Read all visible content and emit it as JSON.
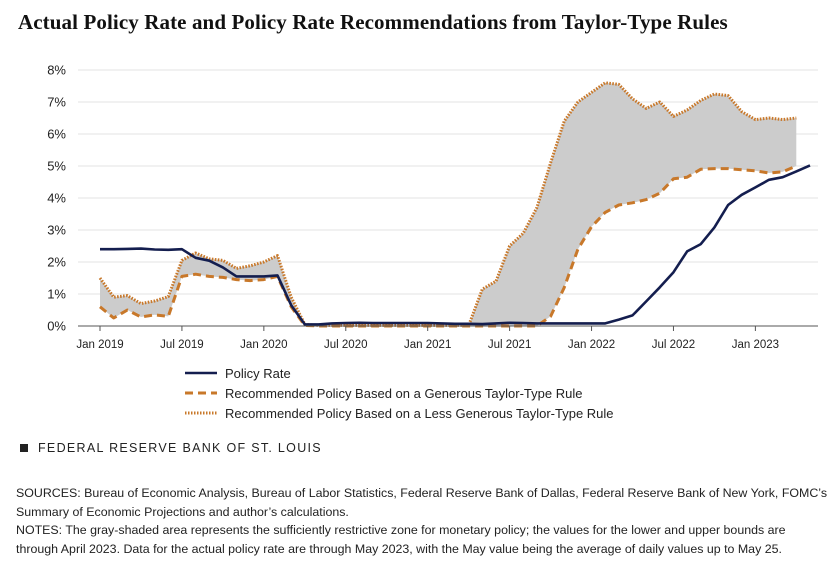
{
  "title": "Actual Policy Rate and Policy Rate Recommendations from Taylor-Type Rules",
  "chart_data": {
    "type": "line",
    "title": "Actual Policy Rate and Policy Rate Recommendations from Taylor-Type Rules",
    "xlabel": "",
    "ylabel": "",
    "ylim": [
      0,
      8
    ],
    "y_tick_labels": [
      "0%",
      "1%",
      "2%",
      "3%",
      "4%",
      "5%",
      "6%",
      "7%",
      "8%"
    ],
    "x_tick_labels": [
      "Jan 2019",
      "Jul 2019",
      "Jan 2020",
      "Jul 2020",
      "Jan 2021",
      "Jul 2021",
      "Jan 2022",
      "Jul 2022",
      "Jan 2023"
    ],
    "x_range": [
      "2019-01",
      "2023-05"
    ],
    "grid": "horizontal",
    "legend_position": "bottom",
    "shaded_area": {
      "between": [
        "Recommended Policy Based on a Generous Taylor-Type Rule",
        "Recommended Policy Based on a Less Generous Taylor-Type Rule"
      ],
      "color": "#cccccc"
    },
    "series": [
      {
        "name": "Policy Rate",
        "color": "#141e4f",
        "style": "solid",
        "x": [
          "2019-01",
          "2019-02",
          "2019-03",
          "2019-04",
          "2019-05",
          "2019-06",
          "2019-07",
          "2019-08",
          "2019-09",
          "2019-10",
          "2019-11",
          "2019-12",
          "2020-01",
          "2020-02",
          "2020-03",
          "2020-04",
          "2020-05",
          "2020-06",
          "2020-07",
          "2020-08",
          "2020-09",
          "2020-10",
          "2020-11",
          "2020-12",
          "2021-01",
          "2021-02",
          "2021-03",
          "2021-04",
          "2021-05",
          "2021-06",
          "2021-07",
          "2021-08",
          "2021-09",
          "2021-10",
          "2021-11",
          "2021-12",
          "2022-01",
          "2022-02",
          "2022-03",
          "2022-04",
          "2022-05",
          "2022-06",
          "2022-07",
          "2022-08",
          "2022-09",
          "2022-10",
          "2022-11",
          "2022-12",
          "2023-01",
          "2023-02",
          "2023-03",
          "2023-04",
          "2023-05"
        ],
        "values": [
          2.4,
          2.4,
          2.41,
          2.42,
          2.39,
          2.38,
          2.4,
          2.13,
          2.04,
          1.83,
          1.55,
          1.55,
          1.55,
          1.58,
          0.65,
          0.05,
          0.05,
          0.08,
          0.09,
          0.1,
          0.09,
          0.09,
          0.09,
          0.09,
          0.09,
          0.08,
          0.07,
          0.07,
          0.06,
          0.08,
          0.1,
          0.09,
          0.08,
          0.08,
          0.08,
          0.08,
          0.08,
          0.08,
          0.2,
          0.33,
          0.77,
          1.21,
          1.68,
          2.33,
          2.56,
          3.08,
          3.78,
          4.1,
          4.33,
          4.57,
          4.65,
          4.83,
          5.02
        ]
      },
      {
        "name": "Recommended Policy Based on a Generous Taylor-Type Rule",
        "color": "#c8782a",
        "style": "dashed",
        "x": [
          "2019-01",
          "2019-02",
          "2019-03",
          "2019-04",
          "2019-05",
          "2019-06",
          "2019-07",
          "2019-08",
          "2019-09",
          "2019-10",
          "2019-11",
          "2019-12",
          "2020-01",
          "2020-02",
          "2020-03",
          "2020-04",
          "2020-05",
          "2020-06",
          "2020-07",
          "2020-08",
          "2020-09",
          "2020-10",
          "2020-11",
          "2020-12",
          "2021-01",
          "2021-02",
          "2021-03",
          "2021-04",
          "2021-05",
          "2021-06",
          "2021-07",
          "2021-08",
          "2021-09",
          "2021-10",
          "2021-11",
          "2021-12",
          "2022-01",
          "2022-02",
          "2022-03",
          "2022-04",
          "2022-05",
          "2022-06",
          "2022-07",
          "2022-08",
          "2022-09",
          "2022-10",
          "2022-11",
          "2022-12",
          "2023-01",
          "2023-02",
          "2023-03",
          "2023-04"
        ],
        "values": [
          0.6,
          0.25,
          0.5,
          0.28,
          0.35,
          0.3,
          1.55,
          1.62,
          1.55,
          1.52,
          1.45,
          1.42,
          1.45,
          1.55,
          0.6,
          0.02,
          0.0,
          0.0,
          0.0,
          0.0,
          0.0,
          0.0,
          0.0,
          0.0,
          0.0,
          0.0,
          0.0,
          0.0,
          0.0,
          0.0,
          0.0,
          0.0,
          0.0,
          0.3,
          1.2,
          2.4,
          3.1,
          3.55,
          3.78,
          3.85,
          3.95,
          4.15,
          4.6,
          4.65,
          4.9,
          4.92,
          4.92,
          4.88,
          4.85,
          4.78,
          4.82,
          5.0
        ]
      },
      {
        "name": "Recommended Policy Based on a Less Generous Taylor-Type Rule",
        "color": "#c8782a",
        "style": "dotted",
        "x": [
          "2019-01",
          "2019-02",
          "2019-03",
          "2019-04",
          "2019-05",
          "2019-06",
          "2019-07",
          "2019-08",
          "2019-09",
          "2019-10",
          "2019-11",
          "2019-12",
          "2020-01",
          "2020-02",
          "2020-03",
          "2020-04",
          "2020-05",
          "2020-06",
          "2020-07",
          "2020-08",
          "2020-09",
          "2020-10",
          "2020-11",
          "2020-12",
          "2021-01",
          "2021-02",
          "2021-03",
          "2021-04",
          "2021-05",
          "2021-06",
          "2021-07",
          "2021-08",
          "2021-09",
          "2021-10",
          "2021-11",
          "2021-12",
          "2022-01",
          "2022-02",
          "2022-03",
          "2022-04",
          "2022-05",
          "2022-06",
          "2022-07",
          "2022-08",
          "2022-09",
          "2022-10",
          "2022-11",
          "2022-12",
          "2023-01",
          "2023-02",
          "2023-03",
          "2023-04"
        ],
        "values": [
          1.5,
          0.9,
          0.95,
          0.7,
          0.78,
          0.92,
          2.05,
          2.28,
          2.1,
          2.05,
          1.8,
          1.88,
          2.0,
          2.2,
          0.9,
          0.05,
          0.02,
          0.02,
          0.02,
          0.02,
          0.02,
          0.02,
          0.02,
          0.02,
          0.02,
          0.02,
          0.02,
          0.02,
          1.15,
          1.4,
          2.5,
          2.9,
          3.7,
          5.1,
          6.4,
          7.0,
          7.3,
          7.6,
          7.55,
          7.1,
          6.8,
          7.0,
          6.55,
          6.75,
          7.05,
          7.25,
          7.2,
          6.7,
          6.45,
          6.5,
          6.45,
          6.5
        ]
      }
    ]
  },
  "legend": {
    "items": [
      "Policy Rate",
      "Recommended Policy Based on a Generous Taylor-Type Rule",
      "Recommended Policy Based on a Less Generous Taylor-Type Rule"
    ]
  },
  "source_brand": "FEDERAL RESERVE BANK OF ST. LOUIS",
  "notes": {
    "sources": "SOURCES: Bureau of Economic Analysis, Bureau of Labor Statistics, Federal Reserve Bank of Dallas, Federal Reserve Bank of New York, FOMC’s Summary of Economic Projections and author’s calculations.",
    "notes": "NOTES: The gray-shaded area represents the sufficiently restrictive zone for monetary policy; the values for the lower and upper bounds are through April 2023. Data for the actual policy rate are through May 2023, with the May value being the average of daily values up to May 25."
  },
  "colors": {
    "policy_rate": "#141e4f",
    "taylor_rules": "#c8782a",
    "shaded_zone": "#cccccc",
    "gridline": "#e3e3e3"
  }
}
